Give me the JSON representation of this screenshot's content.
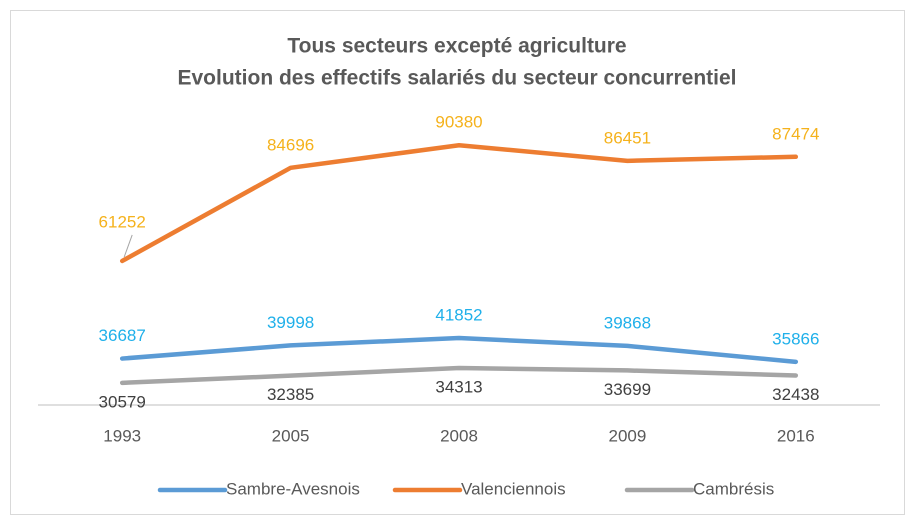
{
  "chart_data": {
    "type": "line",
    "title": "Tous secteurs excepté agriculture",
    "subtitle": "Evolution des effectifs salariés du secteur concurrentiel",
    "categories": [
      "1993",
      "2005",
      "2008",
      "2009",
      "2016"
    ],
    "series": [
      {
        "name": "Sambre-Avesnois",
        "color": "#5b9bd5",
        "label_color": "#1fb0ea",
        "label_position": "above",
        "values": [
          36687,
          39998,
          41852,
          39868,
          35866
        ]
      },
      {
        "name": "Valenciennois",
        "color": "#ed7d31",
        "label_color": "#f5b21c",
        "label_position": "above",
        "values": [
          61252,
          84696,
          90380,
          86451,
          87474
        ]
      },
      {
        "name": "Cambrésis",
        "color": "#a5a5a5",
        "label_color": "#404040",
        "label_position": "below",
        "values": [
          30579,
          32385,
          34313,
          33699,
          32438
        ]
      }
    ],
    "ylim": [
      25000,
      100000
    ],
    "legend": "bottom"
  }
}
